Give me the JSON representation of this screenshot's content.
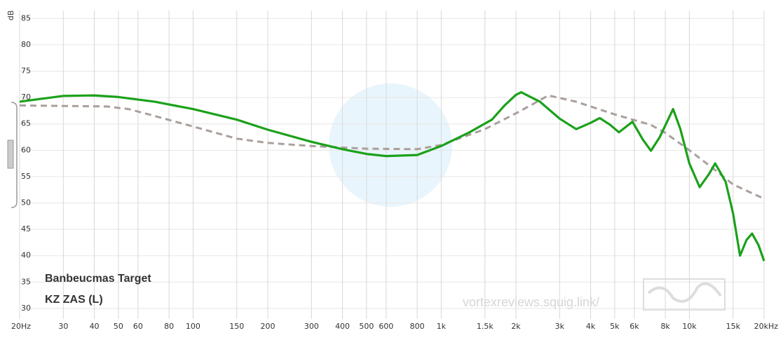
{
  "chart_data": {
    "type": "line",
    "y_label": "dB",
    "watermark": "vortexreviews.squig.link/",
    "xscale": "log",
    "xlim": [
      20,
      20000
    ],
    "ylim": [
      28,
      86.5
    ],
    "xticks": [
      {
        "value": 20,
        "label": "20Hz"
      },
      30,
      40,
      50,
      60,
      80,
      100,
      150,
      200,
      300,
      400,
      500,
      600,
      800,
      {
        "value": 1000,
        "label": "1k"
      },
      {
        "value": 1500,
        "label": "1.5k"
      },
      {
        "value": 2000,
        "label": "2k"
      },
      {
        "value": 3000,
        "label": "3k"
      },
      {
        "value": 4000,
        "label": "4k"
      },
      {
        "value": 5000,
        "label": "5k"
      },
      {
        "value": 6000,
        "label": "6k"
      },
      {
        "value": 8000,
        "label": "8k"
      },
      {
        "value": 10000,
        "label": "10k"
      },
      {
        "value": 15000,
        "label": "15k"
      },
      {
        "value": 20000,
        "label": "20kHz"
      }
    ],
    "yticks": [
      30,
      35,
      40,
      45,
      50,
      55,
      60,
      65,
      70,
      75,
      80,
      85
    ],
    "grid": true,
    "legend": "bottom-left",
    "series": [
      {
        "name": "Banbeucmas Target",
        "color": "#aaa09c",
        "dash": true,
        "x": [
          20,
          45,
          55,
          70,
          100,
          150,
          200,
          300,
          500,
          800,
          1000,
          1500,
          2000,
          2500,
          2700,
          3500,
          5000,
          7000,
          8000,
          10000,
          12500,
          15000,
          20000
        ],
        "values": [
          68.5,
          68.3,
          67.8,
          66.5,
          64.5,
          62.2,
          61.4,
          60.8,
          60.3,
          60.2,
          61.0,
          64.0,
          67.0,
          69.5,
          70.4,
          69.2,
          66.8,
          64.8,
          63.3,
          60.0,
          56.5,
          53.5,
          50.8
        ]
      },
      {
        "name": "KZ ZAS (L)",
        "color": "#1ba11b",
        "dash": false,
        "x": [
          20,
          30,
          40,
          50,
          70,
          100,
          150,
          200,
          300,
          400,
          500,
          600,
          800,
          1000,
          1300,
          1600,
          1800,
          2000,
          2100,
          2500,
          3000,
          3500,
          4000,
          4350,
          4800,
          5200,
          5900,
          6500,
          7000,
          7600,
          8600,
          9200,
          10000,
          11000,
          12000,
          12700,
          14000,
          15000,
          16000,
          17000,
          17900,
          19000,
          20000
        ],
        "values": [
          69.2,
          70.3,
          70.4,
          70.1,
          69.2,
          67.8,
          65.8,
          63.9,
          61.6,
          60.2,
          59.3,
          58.9,
          59.1,
          60.8,
          63.4,
          65.8,
          68.5,
          70.5,
          71.0,
          69.2,
          66.0,
          64.0,
          65.2,
          66.1,
          64.8,
          63.4,
          65.4,
          62.0,
          59.9,
          62.5,
          67.8,
          64.0,
          57.5,
          53.0,
          55.5,
          57.5,
          54.0,
          48.0,
          40.0,
          43.0,
          44.2,
          42.0,
          39.0
        ]
      }
    ]
  }
}
